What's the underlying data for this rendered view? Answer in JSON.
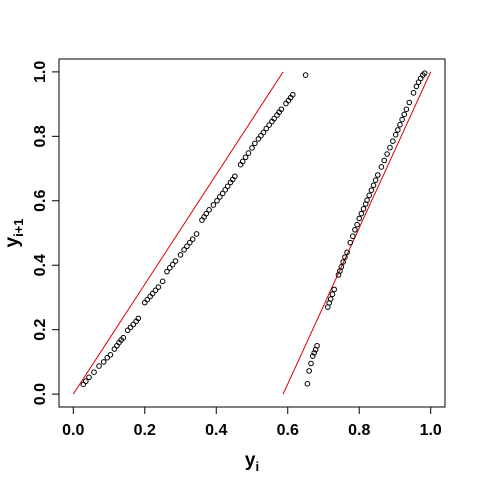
{
  "chart_data": {
    "type": "scatter",
    "title": "",
    "xlabel": "y",
    "xlabel_subscript": "i",
    "ylabel": "y",
    "ylabel_subscript": "i+1",
    "xlim": [
      -0.04,
      1.04
    ],
    "ylim": [
      -0.04,
      1.04
    ],
    "x_ticks": [
      0.0,
      0.2,
      0.4,
      0.6,
      0.8,
      1.0
    ],
    "x_tick_labels": [
      "0.0",
      "0.2",
      "0.4",
      "0.6",
      "0.8",
      "1.0"
    ],
    "y_ticks": [
      0.0,
      0.2,
      0.4,
      0.6,
      0.8,
      1.0
    ],
    "y_tick_labels": [
      "0.0",
      "0.2",
      "0.4",
      "0.6",
      "0.8",
      "1.0"
    ],
    "grid": false,
    "point_color": "#000000",
    "line_color": "#dd0000",
    "lines": [
      {
        "x": [
          0.0,
          0.587
        ],
        "y": [
          0.0,
          1.0
        ]
      },
      {
        "x": [
          0.587,
          1.0
        ],
        "y": [
          0.0,
          1.0
        ]
      }
    ],
    "series": [
      {
        "points": [
          [
            0.028,
            0.03
          ],
          [
            0.035,
            0.04
          ],
          [
            0.044,
            0.052
          ],
          [
            0.058,
            0.068
          ],
          [
            0.072,
            0.087
          ],
          [
            0.085,
            0.1
          ],
          [
            0.095,
            0.113
          ],
          [
            0.104,
            0.122
          ],
          [
            0.115,
            0.14
          ],
          [
            0.122,
            0.15
          ],
          [
            0.128,
            0.16
          ],
          [
            0.134,
            0.168
          ],
          [
            0.14,
            0.175
          ],
          [
            0.152,
            0.198
          ],
          [
            0.16,
            0.207
          ],
          [
            0.168,
            0.216
          ],
          [
            0.176,
            0.226
          ],
          [
            0.182,
            0.235
          ],
          [
            0.2,
            0.284
          ],
          [
            0.207,
            0.293
          ],
          [
            0.215,
            0.303
          ],
          [
            0.222,
            0.312
          ],
          [
            0.23,
            0.322
          ],
          [
            0.238,
            0.332
          ],
          [
            0.25,
            0.35
          ],
          [
            0.262,
            0.38
          ],
          [
            0.27,
            0.392
          ],
          [
            0.278,
            0.402
          ],
          [
            0.286,
            0.413
          ],
          [
            0.3,
            0.432
          ],
          [
            0.31,
            0.448
          ],
          [
            0.318,
            0.459
          ],
          [
            0.326,
            0.47
          ],
          [
            0.334,
            0.481
          ],
          [
            0.345,
            0.497
          ],
          [
            0.36,
            0.54
          ],
          [
            0.366,
            0.55
          ],
          [
            0.372,
            0.56
          ],
          [
            0.38,
            0.572
          ],
          [
            0.392,
            0.587
          ],
          [
            0.402,
            0.6
          ],
          [
            0.41,
            0.612
          ],
          [
            0.418,
            0.623
          ],
          [
            0.425,
            0.634
          ],
          [
            0.432,
            0.645
          ],
          [
            0.44,
            0.657
          ],
          [
            0.446,
            0.666
          ],
          [
            0.452,
            0.676
          ],
          [
            0.468,
            0.712
          ],
          [
            0.474,
            0.722
          ],
          [
            0.482,
            0.735
          ],
          [
            0.49,
            0.748
          ],
          [
            0.5,
            0.764
          ],
          [
            0.508,
            0.778
          ],
          [
            0.518,
            0.792
          ],
          [
            0.525,
            0.802
          ],
          [
            0.532,
            0.812
          ],
          [
            0.54,
            0.824
          ],
          [
            0.548,
            0.835
          ],
          [
            0.556,
            0.846
          ],
          [
            0.562,
            0.855
          ],
          [
            0.57,
            0.866
          ],
          [
            0.576,
            0.875
          ],
          [
            0.582,
            0.884
          ],
          [
            0.595,
            0.902
          ],
          [
            0.602,
            0.911
          ],
          [
            0.608,
            0.92
          ],
          [
            0.614,
            0.929
          ],
          [
            0.65,
            0.99
          ]
        ]
      },
      {
        "points": [
          [
            0.655,
            0.032
          ],
          [
            0.66,
            0.072
          ],
          [
            0.665,
            0.095
          ],
          [
            0.67,
            0.118
          ],
          [
            0.674,
            0.128
          ],
          [
            0.678,
            0.138
          ],
          [
            0.682,
            0.15
          ],
          [
            0.712,
            0.27
          ],
          [
            0.716,
            0.283
          ],
          [
            0.72,
            0.295
          ],
          [
            0.725,
            0.31
          ],
          [
            0.73,
            0.325
          ],
          [
            0.742,
            0.37
          ],
          [
            0.746,
            0.382
          ],
          [
            0.75,
            0.395
          ],
          [
            0.755,
            0.41
          ],
          [
            0.76,
            0.425
          ],
          [
            0.766,
            0.44
          ],
          [
            0.775,
            0.47
          ],
          [
            0.782,
            0.49
          ],
          [
            0.788,
            0.51
          ],
          [
            0.794,
            0.526
          ],
          [
            0.8,
            0.545
          ],
          [
            0.806,
            0.56
          ],
          [
            0.812,
            0.575
          ],
          [
            0.818,
            0.59
          ],
          [
            0.822,
            0.602
          ],
          [
            0.828,
            0.617
          ],
          [
            0.834,
            0.633
          ],
          [
            0.84,
            0.648
          ],
          [
            0.846,
            0.664
          ],
          [
            0.852,
            0.68
          ],
          [
            0.862,
            0.705
          ],
          [
            0.87,
            0.725
          ],
          [
            0.878,
            0.745
          ],
          [
            0.886,
            0.765
          ],
          [
            0.894,
            0.785
          ],
          [
            0.902,
            0.805
          ],
          [
            0.908,
            0.82
          ],
          [
            0.914,
            0.836
          ],
          [
            0.92,
            0.852
          ],
          [
            0.926,
            0.868
          ],
          [
            0.932,
            0.884
          ],
          [
            0.94,
            0.905
          ],
          [
            0.952,
            0.935
          ],
          [
            0.96,
            0.955
          ],
          [
            0.966,
            0.968
          ],
          [
            0.972,
            0.98
          ],
          [
            0.978,
            0.99
          ],
          [
            0.983,
            0.996
          ]
        ]
      }
    ]
  }
}
